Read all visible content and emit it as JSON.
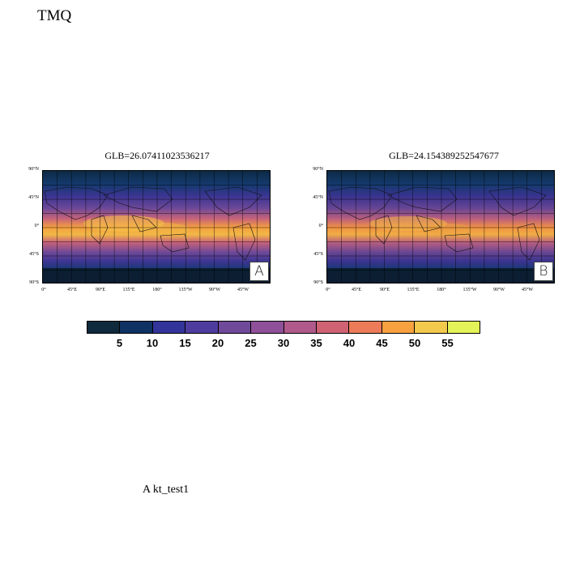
{
  "main_title": "TMQ",
  "panels": [
    {
      "title": "GLB=26.07411023536217",
      "tag": "A"
    },
    {
      "title": "GLB=24.154389252547677",
      "tag": "B"
    }
  ],
  "lat_labels": [
    "90°N",
    "45°N",
    "0°",
    "45°S",
    "90°S"
  ],
  "lon_labels": [
    "0°",
    "45°E",
    "90°E",
    "135°E",
    "180°",
    "135°W",
    "90°W",
    "45°W"
  ],
  "colorbar": {
    "labels": [
      "5",
      "10",
      "15",
      "20",
      "25",
      "30",
      "35",
      "40",
      "45",
      "50",
      "55"
    ],
    "colors": [
      "#0f2a3c",
      "#0d3263",
      "#33349a",
      "#4e3d9f",
      "#6f4a9b",
      "#8e5098",
      "#af5a8a",
      "#cf6374",
      "#ec7c59",
      "#f7a13f",
      "#f2c94c",
      "#e4f458"
    ]
  },
  "caption": "A  kt_test1"
}
